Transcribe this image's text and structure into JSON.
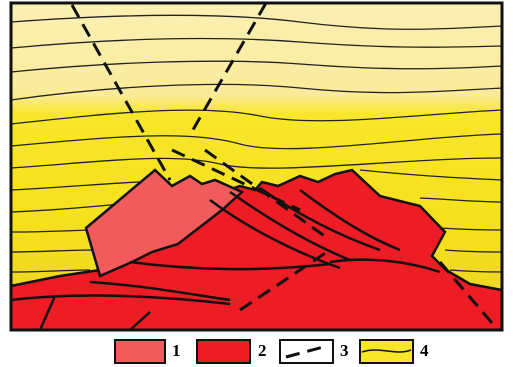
{
  "legend": [
    {
      "label": "1"
    },
    {
      "label": "2"
    },
    {
      "label": "3"
    },
    {
      "label": "4"
    }
  ]
}
